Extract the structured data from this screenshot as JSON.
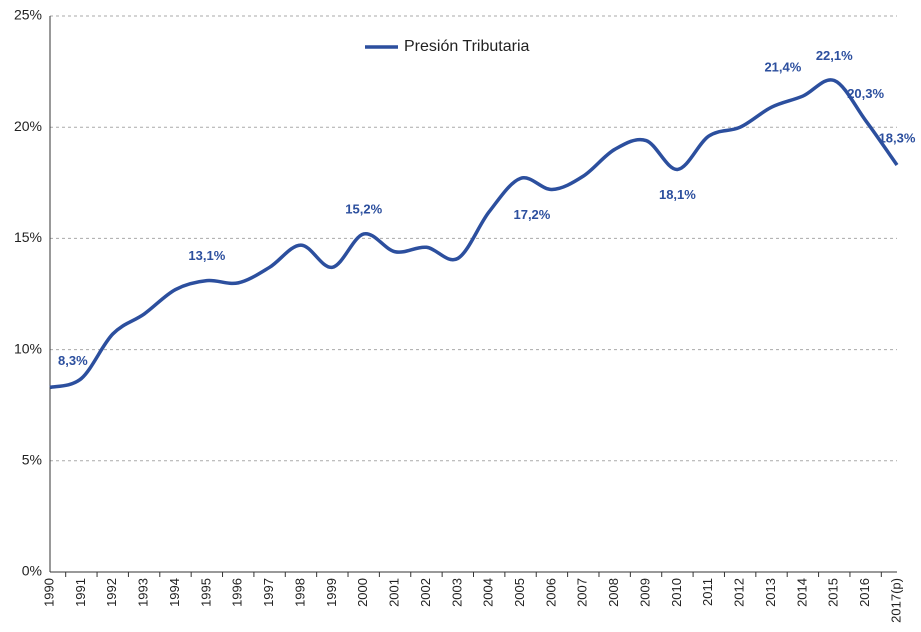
{
  "chart_data": {
    "type": "line",
    "legend": "top",
    "categories": [
      "1990",
      "1991",
      "1992",
      "1993",
      "1994",
      "1995",
      "1996",
      "1997",
      "1998",
      "1999",
      "2000",
      "2001",
      "2002",
      "2003",
      "2004",
      "2005",
      "2006",
      "2007",
      "2008",
      "2009",
      "2010",
      "2011",
      "2012",
      "2013",
      "2014",
      "2015",
      "2016",
      "2017(p)"
    ],
    "series": [
      {
        "name": "Presión Tributaria",
        "color": "#2c4f9e",
        "values": [
          8.3,
          8.7,
          10.7,
          11.6,
          12.7,
          13.1,
          13.0,
          13.7,
          14.7,
          13.7,
          15.2,
          14.4,
          14.6,
          14.1,
          16.2,
          17.7,
          17.2,
          17.8,
          19.0,
          19.4,
          18.1,
          19.6,
          20.0,
          20.9,
          21.4,
          22.1,
          20.3,
          18.3
        ],
        "value_labels": [
          "8,3%",
          null,
          null,
          null,
          null,
          "13,1%",
          null,
          null,
          null,
          null,
          "15,2%",
          null,
          null,
          null,
          null,
          null,
          "17,2%",
          null,
          null,
          null,
          "18,1%",
          null,
          null,
          null,
          "21,4%",
          "22,1%",
          "20,3%",
          "18,3%"
        ]
      }
    ],
    "ylim": [
      0,
      25
    ],
    "yticks": [
      {
        "value": 0,
        "label": "0%"
      },
      {
        "value": 5,
        "label": "5%"
      },
      {
        "value": 10,
        "label": "10%"
      },
      {
        "value": 15,
        "label": "15%"
      },
      {
        "value": 20,
        "label": "20%"
      },
      {
        "value": 25,
        "label": "25%"
      }
    ],
    "grid": true
  }
}
